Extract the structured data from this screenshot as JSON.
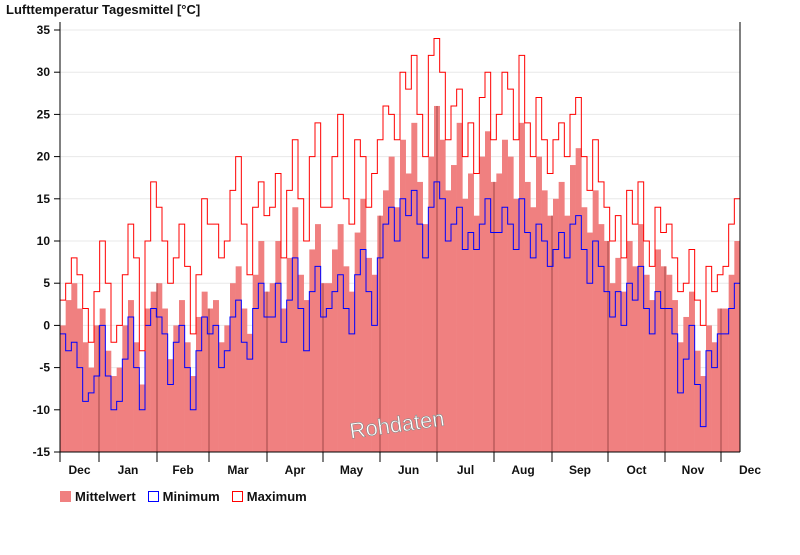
{
  "chart_data": {
    "type": "bar",
    "title": "Lufttemperatur Tagesmittel [°C]",
    "xlabel": "",
    "ylabel": "",
    "ylim": [
      -15,
      35
    ],
    "yticks": [
      35,
      30,
      25,
      20,
      15,
      10,
      5,
      0,
      -5,
      -10,
      -15
    ],
    "ytick_labels": [
      "35",
      "30",
      "25",
      "20",
      "15",
      "10",
      "5",
      "0",
      "-5",
      "-10",
      "-15"
    ],
    "month_labels": [
      "Dec",
      "Jan",
      "Feb",
      "Mar",
      "Apr",
      "May",
      "Jun",
      "Jul",
      "Aug",
      "Sep",
      "Oct",
      "Nov",
      "Dec"
    ],
    "grid": true,
    "legend_position": "bottom-left",
    "watermark": "Rohdaten",
    "series": [
      {
        "name": "Mittelwert",
        "color": "#f08080",
        "kind": "bar",
        "values": [
          0,
          3,
          5,
          2,
          -2,
          -5,
          0,
          2,
          -3,
          -6,
          -5,
          0,
          3,
          -2,
          -7,
          2,
          4,
          5,
          2,
          -4,
          0,
          3,
          -2,
          -6,
          1,
          4,
          2,
          3,
          -2,
          0,
          5,
          7,
          2,
          -1,
          6,
          10,
          4,
          5,
          10,
          2,
          8,
          14,
          6,
          3,
          9,
          12,
          5,
          5,
          9,
          12,
          7,
          4,
          11,
          15,
          8,
          6,
          13,
          16,
          20,
          14,
          22,
          18,
          24,
          17,
          12,
          20,
          26,
          22,
          16,
          19,
          24,
          15,
          18,
          13,
          20,
          23,
          17,
          18,
          22,
          20,
          15,
          24,
          17,
          14,
          20,
          16,
          13,
          15,
          17,
          13,
          19,
          21,
          14,
          11,
          16,
          12,
          10,
          5,
          8,
          4,
          10,
          7,
          12,
          6,
          3,
          9,
          7,
          6,
          3,
          -2,
          1,
          4,
          -3,
          -6,
          0,
          -2,
          2,
          2,
          6,
          10
        ]
      },
      {
        "name": "Minimum",
        "color": "#0000ff",
        "kind": "step",
        "values": [
          -1,
          -3,
          -2,
          -5,
          -9,
          -8,
          -6,
          0,
          -6,
          -10,
          -9,
          -4,
          1,
          -5,
          -10,
          0,
          2,
          1,
          -1,
          -7,
          -2,
          0,
          -5,
          -10,
          -3,
          1,
          -1,
          0,
          -5,
          -3,
          1,
          3,
          -2,
          -4,
          2,
          5,
          1,
          1,
          5,
          -2,
          3,
          8,
          2,
          -3,
          4,
          7,
          1,
          2,
          4,
          6,
          2,
          -1,
          6,
          9,
          4,
          0,
          8,
          12,
          14,
          10,
          15,
          13,
          16,
          12,
          8,
          14,
          17,
          15,
          10,
          12,
          14,
          9,
          11,
          9,
          12,
          15,
          11,
          11,
          14,
          12,
          9,
          15,
          11,
          8,
          12,
          10,
          7,
          9,
          11,
          8,
          12,
          13,
          9,
          5,
          10,
          7,
          4,
          1,
          4,
          0,
          5,
          3,
          7,
          2,
          -1,
          4,
          2,
          2,
          -1,
          -8,
          -4,
          0,
          -7,
          -12,
          -3,
          -5,
          -1,
          -1,
          2,
          5
        ]
      },
      {
        "name": "Maximum",
        "color": "#ff0000",
        "kind": "step",
        "values": [
          3,
          5,
          8,
          6,
          2,
          -2,
          4,
          10,
          5,
          -2,
          0,
          6,
          12,
          8,
          -3,
          10,
          17,
          14,
          10,
          5,
          8,
          12,
          7,
          -1,
          6,
          15,
          12,
          12,
          8,
          10,
          16,
          20,
          12,
          6,
          14,
          17,
          13,
          14,
          18,
          8,
          16,
          22,
          15,
          10,
          20,
          24,
          14,
          14,
          20,
          25,
          15,
          12,
          22,
          20,
          14,
          18,
          22,
          26,
          25,
          22,
          30,
          28,
          32,
          25,
          20,
          32,
          34,
          30,
          22,
          26,
          28,
          20,
          24,
          18,
          27,
          30,
          22,
          25,
          30,
          28,
          22,
          32,
          24,
          20,
          27,
          22,
          18,
          22,
          24,
          20,
          25,
          27,
          20,
          16,
          22,
          17,
          14,
          10,
          13,
          8,
          16,
          12,
          17,
          10,
          7,
          14,
          11,
          12,
          8,
          4,
          5,
          9,
          3,
          0,
          7,
          4,
          6,
          7,
          12,
          15
        ]
      }
    ]
  }
}
